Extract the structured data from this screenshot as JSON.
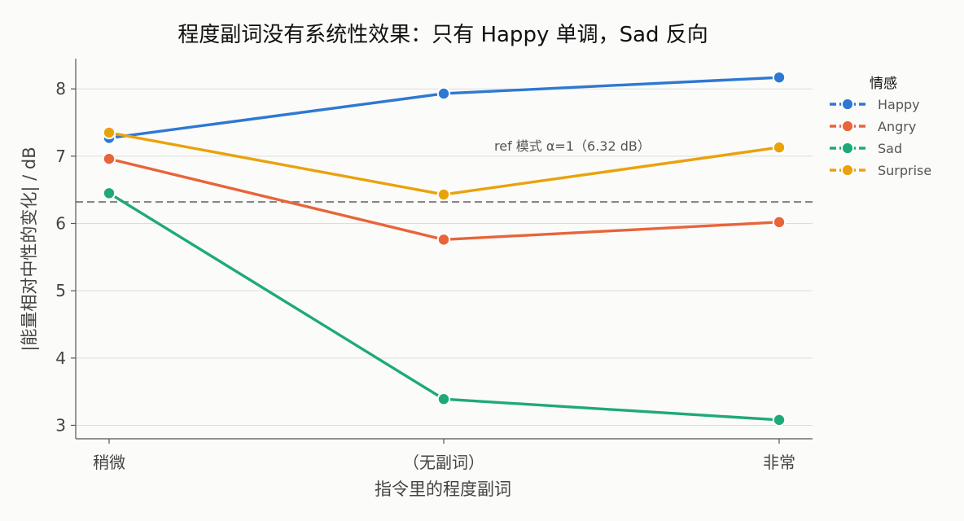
{
  "chart_data": {
    "type": "line",
    "title": "程度副词没有系统性效果：只有 Happy 单调，Sad 反向",
    "xlabel": "指令里的程度副词",
    "ylabel": "|能量相对中性的变化| / dB",
    "categories": [
      "稍微",
      "（无副词）",
      "非常"
    ],
    "ylim": [
      2.8,
      8.45
    ],
    "yticks": [
      3,
      4,
      5,
      6,
      7,
      8
    ],
    "grid": "horizontal",
    "legend": {
      "title": "情感",
      "placement": "right"
    },
    "series": [
      {
        "name": "Happy",
        "color": "#2e78d2",
        "values": [
          7.27,
          7.93,
          8.17
        ]
      },
      {
        "name": "Angry",
        "color": "#e8643a",
        "values": [
          6.96,
          5.76,
          6.02
        ]
      },
      {
        "name": "Sad",
        "color": "#1fa97a",
        "values": [
          6.45,
          3.39,
          3.08
        ]
      },
      {
        "name": "Surprise",
        "color": "#eaa20c",
        "values": [
          7.35,
          6.43,
          7.13
        ]
      }
    ],
    "reference": {
      "value": 6.32,
      "label": "ref 模式 α=1（6.32 dB）",
      "color": "#888888"
    }
  }
}
